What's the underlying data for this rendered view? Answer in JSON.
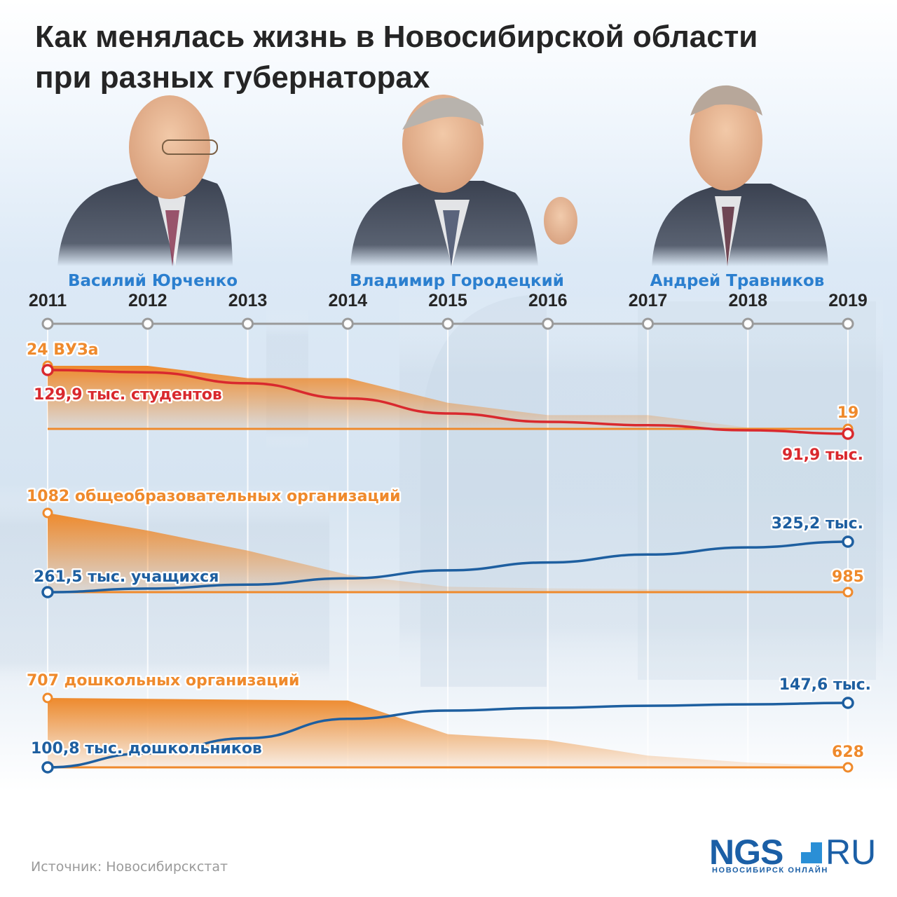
{
  "title": {
    "line1": "Как менялась жизнь в Новосибирской области",
    "line2": "при разных губернаторах"
  },
  "governors": [
    {
      "name": "Василий Юрченко"
    },
    {
      "name": "Владимир Городецкий"
    },
    {
      "name": "Андрей Травников"
    }
  ],
  "source": "Источник: Новосибирскстат",
  "logo": {
    "brand": "NGS",
    "domain": "RU",
    "subtitle": "НОВОСИБИРСК ОНЛАЙН"
  },
  "colors": {
    "orange": "#ef8a2c",
    "orange_area": "#ee8a2d",
    "red": "#d9292e",
    "blue": "#1e5fa0",
    "governor_name": "#2b7fcf",
    "axis": "#9a9a9a",
    "text_dark": "#252525"
  },
  "chart_data": {
    "type": "line",
    "x": [
      2011,
      2012,
      2013,
      2014,
      2015,
      2016,
      2017,
      2018,
      2019
    ],
    "panels": [
      {
        "id": "higher",
        "series": [
          {
            "name": "ВУЗы",
            "kind": "area",
            "color": "#ee8a2d",
            "values": [
              24,
              24,
              23,
              23,
              21,
              20,
              20,
              19,
              19
            ],
            "label_start": "24 ВУЗа",
            "label_end": "19"
          },
          {
            "name": "студенты",
            "kind": "line",
            "color": "#d9292e",
            "values": [
              129.9,
              128.5,
              122,
              113,
              104,
              99,
              97,
              94,
              91.9
            ],
            "label_start": "129,9 тыс.  студентов",
            "label_end": "91,9 тыс."
          }
        ]
      },
      {
        "id": "school",
        "series": [
          {
            "name": "общеобразовательные организации",
            "kind": "area",
            "color": "#ee8a2d",
            "values": [
              1082,
              1060,
              1035,
              1005,
              990,
              988,
              987,
              986,
              985
            ],
            "label_start": "1082 общеобразовательных организаций",
            "label_end": "985"
          },
          {
            "name": "учащиеся",
            "kind": "line",
            "color": "#1e5fa0",
            "values": [
              261.5,
              266,
              271,
              279,
              289,
              299,
              309,
              318,
              325.2
            ],
            "label_start": "261,5 тыс. учащихся",
            "label_end": "325,2 тыс."
          }
        ]
      },
      {
        "id": "preschool",
        "series": [
          {
            "name": "дошкольные организации",
            "kind": "area",
            "color": "#ee8a2d",
            "values": [
              707,
              706,
              705,
              704,
              665,
              658,
              640,
              632,
              628
            ],
            "label_start": "707 дошкольных организаций",
            "label_end": "628"
          },
          {
            "name": "дошкольники",
            "kind": "line",
            "color": "#1e5fa0",
            "values": [
              100.8,
              111,
              122,
              136,
              142,
              144,
              145.5,
              146.5,
              147.6
            ],
            "label_start": "100,8 тыс. дошкольников",
            "label_end": "147,6 тыс."
          }
        ]
      }
    ]
  }
}
